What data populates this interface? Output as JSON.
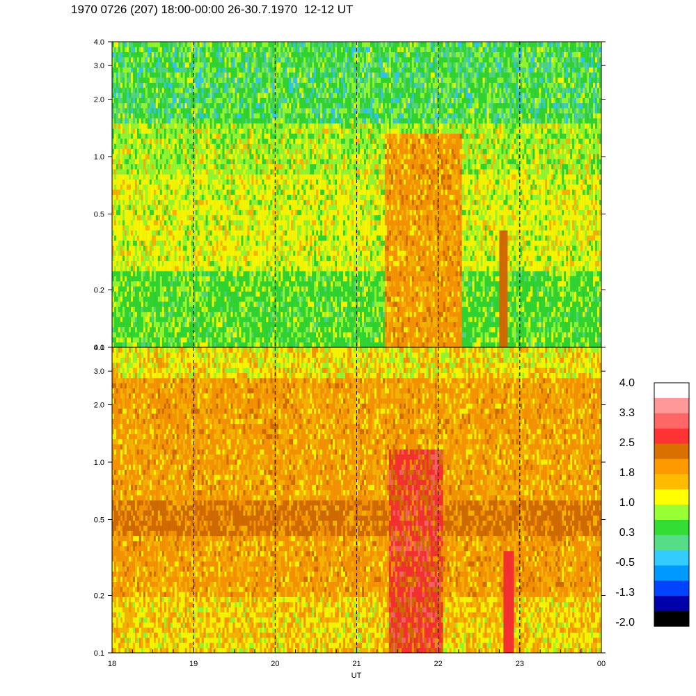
{
  "title": "1970 0726 (207) 18:00-00:00 26-30.7.1970  12-12 UT",
  "chart_data": [
    {
      "type": "heatmap",
      "panel": "upper",
      "x_range": [
        "18",
        "00"
      ],
      "x_ticks": [
        "18",
        "19",
        "20",
        "21",
        "22",
        "23",
        "00"
      ],
      "y_ticks": [
        "0.1",
        "0.2",
        "0.5",
        "1.0",
        "2.0",
        "3.0",
        "4.0"
      ],
      "y_range": [
        0.1,
        4.0
      ],
      "y_scale": "log",
      "dashed_hour_markers": [
        "19",
        "20",
        "21",
        "22",
        "23"
      ],
      "dominant_levels": {
        "low_freq": "green",
        "mid_freq": "yellow",
        "high_freq": "green-cyan",
        "enhancement_21.4-22.3": "orange"
      }
    },
    {
      "type": "heatmap",
      "panel": "lower",
      "x_range": [
        "18",
        "00"
      ],
      "x_ticks": [
        "18",
        "19",
        "20",
        "21",
        "22",
        "23",
        "00"
      ],
      "xlabel": "UT",
      "y_ticks": [
        "0.1",
        "0.2",
        "0.5",
        "1.0",
        "2.0",
        "3.0",
        "4.0"
      ],
      "y_range": [
        0.1,
        4.0
      ],
      "y_scale": "log",
      "dashed_hour_markers": [
        "19",
        "20",
        "21",
        "22",
        "23"
      ],
      "dominant_levels": {
        "general": "orange",
        "band_near_0.5": "dark-orange",
        "burst_21.4-22.0": "red"
      }
    }
  ],
  "colorbar": {
    "labels": [
      "4.0",
      "3.3",
      "2.5",
      "1.8",
      "1.0",
      "0.3",
      "-0.5",
      "-1.3",
      "-2.0"
    ],
    "colors": [
      "#ffffff",
      "#ff9999",
      "#ff6666",
      "#ff3333",
      "#d97000",
      "#ff9900",
      "#ffbb00",
      "#ffff00",
      "#99ff33",
      "#33dd33",
      "#55dd88",
      "#33ccff",
      "#0099ff",
      "#0044ff",
      "#0000aa",
      "#000000"
    ]
  }
}
